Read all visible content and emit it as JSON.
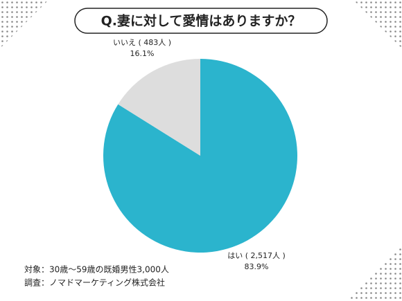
{
  "chart_data": {
    "type": "pie",
    "title": "Q.妻に対して愛情はありますか？",
    "categories": [
      "はい ( 2,517人 )",
      "いいえ ( 483人 )"
    ],
    "values": [
      83.9,
      16.1
    ],
    "value_labels": [
      "83.9%",
      "16.1%"
    ],
    "colors": [
      "#2bb4cd",
      "#dddddd"
    ],
    "notes": [
      "対象：30歳〜59歳の既婚男性3,000人",
      "調査：ノマドマーケティング株式会社"
    ]
  }
}
